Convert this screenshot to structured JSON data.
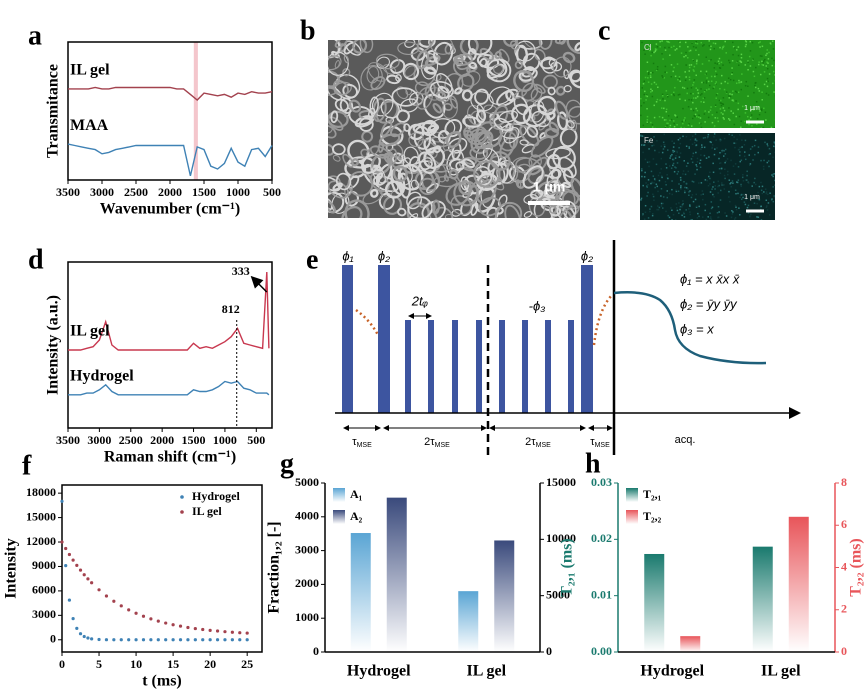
{
  "chart_data": [
    {
      "type": "line",
      "label": "a",
      "xlabel": "Wavenumber (cm⁻¹)",
      "ylabel": "Transmitance",
      "xlim": [
        3500,
        500
      ],
      "xticks": [
        3500,
        3000,
        2500,
        2000,
        1500,
        1000,
        500
      ],
      "ylim": [
        0,
        10
      ],
      "highlight": [
        1650,
        1590
      ],
      "highlight_color": "#f4c6cc",
      "x": [
        3500,
        3400,
        3300,
        3200,
        3100,
        3000,
        2900,
        2800,
        2700,
        2600,
        2500,
        2400,
        2300,
        2200,
        2100,
        2000,
        1900,
        1800,
        1700,
        1600,
        1500,
        1400,
        1300,
        1200,
        1100,
        1000,
        900,
        800,
        700,
        600,
        500
      ],
      "series": [
        {
          "name": "IL gel",
          "color": "#a3424e",
          "values": [
            6.6,
            6.6,
            6.6,
            6.6,
            6.7,
            6.6,
            6.6,
            6.7,
            6.7,
            6.7,
            6.7,
            6.7,
            6.7,
            6.7,
            6.7,
            6.7,
            6.6,
            6.6,
            6.2,
            5.8,
            6.3,
            6.2,
            6.1,
            6.2,
            6.0,
            6.3,
            6.2,
            6.4,
            6.3,
            6.3,
            6.4
          ]
        },
        {
          "name": "MAA",
          "color": "#3f82b5",
          "values": [
            2.6,
            2.5,
            2.4,
            2.3,
            2.2,
            1.9,
            2.0,
            2.2,
            2.3,
            2.4,
            2.5,
            2.5,
            2.5,
            2.5,
            2.5,
            2.5,
            2.5,
            2.5,
            0.3,
            2.4,
            2.2,
            1.0,
            0.8,
            1.2,
            2.3,
            1.3,
            1.0,
            2.2,
            2.3,
            1.7,
            2.5
          ]
        }
      ]
    },
    {
      "type": "line",
      "label": "d",
      "xlabel": "Raman shift (cm⁻¹)",
      "ylabel": "Intensity (a.u.)",
      "xlim": [
        3500,
        250
      ],
      "xticks": [
        3500,
        3000,
        2500,
        2000,
        1500,
        1000,
        500
      ],
      "ylim": [
        0,
        10
      ],
      "annotations": [
        {
          "text": "812",
          "x": 812
        },
        {
          "text": "333",
          "x": 333
        }
      ],
      "x": [
        3500,
        3400,
        3300,
        3200,
        3100,
        3000,
        2900,
        2800,
        2700,
        2600,
        2500,
        2400,
        2300,
        2200,
        2100,
        2000,
        1900,
        1800,
        1700,
        1600,
        1500,
        1400,
        1300,
        1200,
        1100,
        1000,
        900,
        800,
        700,
        600,
        500,
        400,
        333,
        300
      ],
      "series": [
        {
          "name": "IL gel",
          "color": "#c8384f",
          "values": [
            4.7,
            4.7,
            4.7,
            4.8,
            4.9,
            5.3,
            6.4,
            5.0,
            4.7,
            4.7,
            4.7,
            4.7,
            4.7,
            4.7,
            4.7,
            4.7,
            4.7,
            4.7,
            4.7,
            4.7,
            5.1,
            4.8,
            4.9,
            4.8,
            5.0,
            5.2,
            5.5,
            6.0,
            5.1,
            5.0,
            4.9,
            4.8,
            9.4,
            4.8
          ]
        },
        {
          "name": "Hydrogel",
          "color": "#3f82b5",
          "values": [
            2.0,
            2.0,
            2.0,
            2.1,
            2.1,
            2.3,
            2.6,
            2.2,
            2.0,
            2.0,
            2.0,
            2.0,
            2.0,
            2.0,
            2.0,
            2.0,
            2.0,
            2.0,
            2.0,
            2.0,
            2.3,
            2.2,
            2.2,
            2.3,
            2.5,
            2.8,
            2.7,
            2.8,
            2.4,
            2.3,
            2.1,
            2.1,
            2.1,
            2.0
          ]
        }
      ]
    },
    {
      "type": "scatter",
      "label": "f",
      "xlabel": "t (ms)",
      "ylabel": "Intensity",
      "legend": "upper right",
      "xlim": [
        0,
        27
      ],
      "xticks": [
        0,
        5,
        10,
        15,
        20,
        25
      ],
      "ylim": [
        -1500,
        19000
      ],
      "yticks": [
        0,
        3000,
        6000,
        9000,
        12000,
        15000,
        18000
      ],
      "x": [
        0,
        0.5,
        1,
        1.5,
        2,
        2.5,
        3,
        3.5,
        4,
        5,
        6,
        7,
        8,
        9,
        10,
        11,
        12,
        13,
        14,
        15,
        16,
        17,
        18,
        19,
        20,
        21,
        22,
        23,
        24,
        25
      ],
      "series": [
        {
          "name": "Hydrogel",
          "color": "#3f82b5",
          "values": [
            17000,
            9100,
            4870,
            2600,
            1400,
            745,
            400,
            214,
            115,
            30,
            10,
            0,
            0,
            0,
            0,
            0,
            0,
            0,
            0,
            0,
            0,
            0,
            0,
            0,
            0,
            0,
            0,
            0,
            0,
            0
          ]
        },
        {
          "name": "IL gel",
          "color": "#a3424e",
          "values": [
            12000,
            11206,
            10470,
            9781,
            9137,
            8550,
            7987,
            7480,
            6998,
            6135,
            5376,
            4732,
            4169,
            3674,
            3260,
            2892,
            2570,
            2294,
            2053,
            1846,
            1673,
            1512,
            1374,
            1259,
            1156,
            1075,
            995,
            926,
            868,
            822
          ]
        }
      ]
    },
    {
      "type": "bar",
      "label": "g",
      "ylabel": "Fraction₁,₂ [-]",
      "legend": "upper left",
      "categories": [
        "Hydrogel",
        "IL gel"
      ],
      "ylim": [
        0,
        5000
      ],
      "yticks": [
        0,
        1000,
        2000,
        3000,
        4000,
        5000
      ],
      "y2lim": [
        0,
        15000
      ],
      "y2ticks": [
        0,
        5000,
        10000,
        15000
      ],
      "axis_colors": false,
      "series": [
        {
          "name": "A₁",
          "color": "#5aa5d4",
          "values": [
            3520,
            1800
          ]
        },
        {
          "name": "A₂",
          "color": "#3a4a7c",
          "axis": "y2",
          "values": [
            13700,
            9900
          ]
        }
      ]
    },
    {
      "type": "bar",
      "label": "h",
      "ylabel": "T₂,₁ (ms)",
      "y2label": "T₂,₂ (ms)",
      "legend": "upper left",
      "categories": [
        "Hydrogel",
        "IL gel"
      ],
      "ylim": [
        0,
        0.03
      ],
      "yticks": [
        {
          "value": 0,
          "label": "0.00"
        },
        0.01,
        0.02,
        0.03
      ],
      "y2lim": [
        0,
        8
      ],
      "y2ticks": [
        0,
        2,
        4,
        6,
        8
      ],
      "axis_colors": true,
      "series": [
        {
          "name": "T₂,₁",
          "color": "#1a7a6e",
          "values": [
            0.0174,
            0.0187
          ]
        },
        {
          "name": "T₂,₂",
          "color": "#e8555a",
          "axis": "y2",
          "values": [
            0.75,
            6.4
          ]
        }
      ]
    }
  ],
  "images": {
    "b": {
      "label": "b",
      "scale": "1 μm"
    },
    "c": {
      "label": "c",
      "maps": [
        {
          "element": "Cl",
          "scale": "1 μm"
        },
        {
          "element": "Fe",
          "scale": "1 μm"
        }
      ]
    }
  },
  "diagram": {
    "label": "e",
    "pulses": [
      "ϕ₁",
      "ϕ₂",
      "ϕ₂"
    ],
    "spacing": "2tᵩ",
    "phase": "-ϕ₃",
    "equations": [
      "ϕ₁ = x x̄x x̄",
      "ϕ₂ = ȳy ȳy",
      "ϕ₃ = x"
    ],
    "timing": [
      [
        "τ",
        "MSE"
      ],
      [
        "2τ",
        "MSE"
      ],
      [
        "2τ",
        "MSE"
      ],
      [
        "τ",
        "MSE"
      ]
    ],
    "acquisition": "acq."
  }
}
